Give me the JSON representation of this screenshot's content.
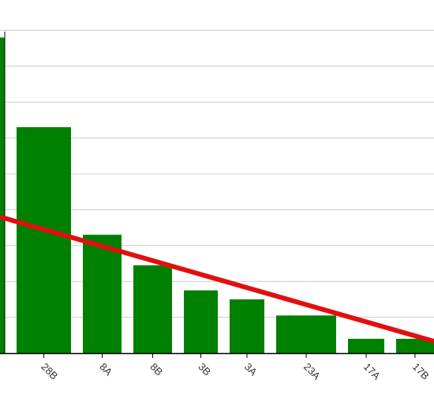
{
  "chart_data": {
    "type": "bar",
    "categories": [
      "",
      "28B",
      "8A",
      "8B",
      "3B",
      "3A",
      "23A",
      "17A",
      "17B"
    ],
    "values": [
      88,
      63,
      33,
      24.5,
      17.5,
      15,
      10.5,
      4,
      4
    ],
    "bar_color": "#008000",
    "trend_line": {
      "color": "#e01010",
      "start_value": 38,
      "end_value": 3.3
    },
    "ylim": [
      0,
      100
    ],
    "grid": true
  }
}
